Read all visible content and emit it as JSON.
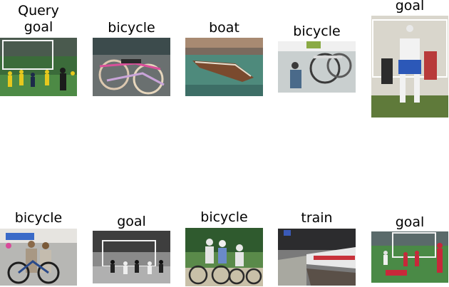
{
  "grid": {
    "items": [
      {
        "label": "Query\ngoal",
        "scene": "soccer field with players in yellow and dark kits near a goal"
      },
      {
        "label": "bicycle",
        "scene": "bicycles in a bike shop"
      },
      {
        "label": "boat",
        "scene": "wooden boat moored in a canal"
      },
      {
        "label": "bicycle",
        "scene": "man repairing a bicycle on a wall rack"
      },
      {
        "label": "goal",
        "scene": "soccer players jumping for a header in front of the goal"
      },
      {
        "label": "bicycle",
        "scene": "people standing with a bicycle in front of a shop"
      },
      {
        "label": "goal",
        "scene": "black and white photo of soccer players at a goal"
      },
      {
        "label": "bicycle",
        "scene": "family riding bicycles with helmets"
      },
      {
        "label": "train",
        "scene": "train at a station platform"
      },
      {
        "label": "goal",
        "scene": "soccer players in red and white near the goal"
      }
    ]
  }
}
